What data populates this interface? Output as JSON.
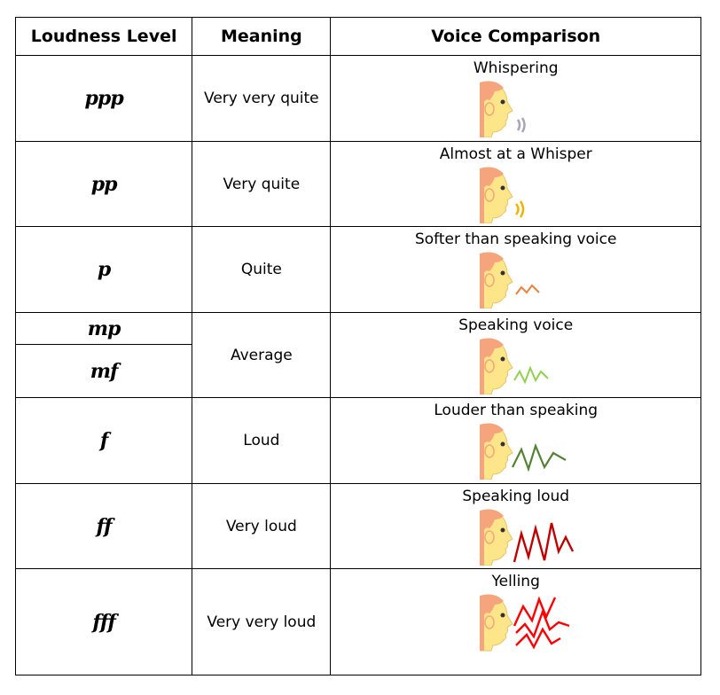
{
  "headers": {
    "level": "Loudness Level",
    "meaning": "Meaning",
    "comparison": "Voice Comparison"
  },
  "rows": [
    {
      "level": "ppp",
      "meaning": "Very very quite",
      "comparison": "Whispering",
      "icon": "whisper-icon",
      "wave_color": "#a6a6b6"
    },
    {
      "level": "pp",
      "meaning": "Very quite",
      "comparison": "Almost at a Whisper",
      "icon": "soft-sound-icon",
      "wave_color": "#f0b400"
    },
    {
      "level": "p",
      "meaning": "Quite",
      "comparison": "Softer than speaking voice",
      "icon": "quiet-wave-icon",
      "wave_color": "#e8823c"
    },
    {
      "level_a": "mp",
      "level_b": "mf",
      "meaning": "Average",
      "comparison": "Speaking voice",
      "icon": "speaking-wave-icon",
      "wave_color": "#92d050"
    },
    {
      "level": "f",
      "meaning": "Loud",
      "comparison": "Louder than speaking",
      "icon": "loud-wave-icon",
      "wave_color": "#548235"
    },
    {
      "level": "ff",
      "meaning": "Very loud",
      "comparison": "Speaking loud",
      "icon": "very-loud-wave-icon",
      "wave_color": "#c00000"
    },
    {
      "level": "fff",
      "meaning": "Very very loud",
      "comparison": "Yelling",
      "icon": "yelling-wave-icon",
      "wave_color": "#ff0000"
    }
  ],
  "colors": {
    "skin": "#fde68a",
    "skin_outline": "#e6c46a",
    "hair": "#f6a47c",
    "eye": "#333333"
  }
}
